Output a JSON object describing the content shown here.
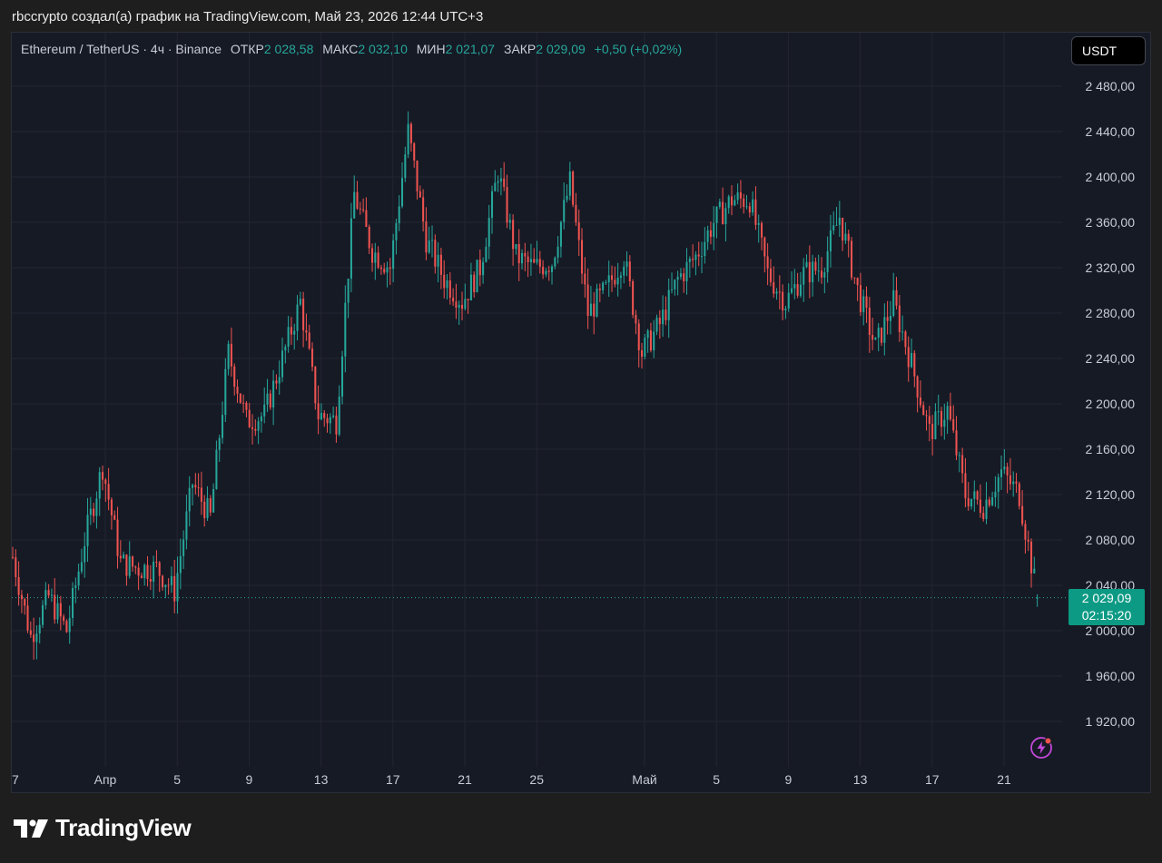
{
  "header": {
    "credit": "rbccrypto создал(а) график на TradingView.com, Май 23, 2026 12:44 UTC+3"
  },
  "legend": {
    "symbol": "Ethereum / TetherUS · 4ч · Binance",
    "open_label": "ОТКР",
    "open_value": "2 028,58",
    "high_label": "МАКС",
    "high_value": "2 032,10",
    "low_label": "МИН",
    "low_value": "2 021,07",
    "close_label": "ЗАКР",
    "close_value": "2 029,09",
    "change": "+0,50 (+0,02%)"
  },
  "currency_button": "USDT",
  "price_label": {
    "price": "2 029,09",
    "countdown": "02:15:20"
  },
  "brand": {
    "name": "TradingView"
  },
  "colors": {
    "up": "#26a69a",
    "down": "#ef5350",
    "background": "#161a25",
    "grid": "#232632"
  },
  "icons": [
    "tradingview-logo-icon",
    "lightning-alert-icon"
  ],
  "chart_data": {
    "type": "candlestick",
    "title": "Ethereum / TetherUS · 4ч · Binance",
    "timeframe": "4ч",
    "x_ticks": [
      "7",
      "Апр",
      "5",
      "9",
      "13",
      "17",
      "21",
      "25",
      "Май",
      "5",
      "9",
      "13",
      "17",
      "21"
    ],
    "y_ticks": [
      "2 480,00",
      "2 440,00",
      "2 400,00",
      "2 360,00",
      "2 320,00",
      "2 280,00",
      "2 240,00",
      "2 200,00",
      "2 160,00",
      "2 120,00",
      "2 080,00",
      "2 040,00",
      "2 000,00",
      "1 960,00",
      "1 920,00"
    ],
    "ylim": [
      1895,
      2495
    ],
    "grid": true,
    "series_close": [
      {
        "date": "2026-03-27",
        "close": 2065
      },
      {
        "date": "2026-03-28",
        "close": 1995
      },
      {
        "date": "2026-03-29",
        "close": 2030
      },
      {
        "date": "2026-03-30",
        "close": 2000
      },
      {
        "date": "2026-03-31",
        "close": 2080
      },
      {
        "date": "2026-04-01",
        "close": 2145
      },
      {
        "date": "2026-04-02",
        "close": 2060
      },
      {
        "date": "2026-04-03",
        "close": 2055
      },
      {
        "date": "2026-04-04",
        "close": 2055
      },
      {
        "date": "2026-04-05",
        "close": 2035
      },
      {
        "date": "2026-04-06",
        "close": 2130
      },
      {
        "date": "2026-04-07",
        "close": 2100
      },
      {
        "date": "2026-04-08",
        "close": 2245
      },
      {
        "date": "2026-04-09",
        "close": 2185
      },
      {
        "date": "2026-04-10",
        "close": 2190
      },
      {
        "date": "2026-04-11",
        "close": 2240
      },
      {
        "date": "2026-04-12",
        "close": 2290
      },
      {
        "date": "2026-04-13",
        "close": 2190
      },
      {
        "date": "2026-04-14",
        "close": 2185
      },
      {
        "date": "2026-04-15",
        "close": 2385
      },
      {
        "date": "2026-04-16",
        "close": 2335
      },
      {
        "date": "2026-04-17",
        "close": 2320
      },
      {
        "date": "2026-04-18",
        "close": 2440
      },
      {
        "date": "2026-04-19",
        "close": 2345
      },
      {
        "date": "2026-04-20",
        "close": 2310
      },
      {
        "date": "2026-04-21",
        "close": 2290
      },
      {
        "date": "2026-04-22",
        "close": 2320
      },
      {
        "date": "2026-04-23",
        "close": 2405
      },
      {
        "date": "2026-04-24",
        "close": 2330
      },
      {
        "date": "2026-04-25",
        "close": 2320
      },
      {
        "date": "2026-04-26",
        "close": 2325
      },
      {
        "date": "2026-04-27",
        "close": 2395
      },
      {
        "date": "2026-04-28",
        "close": 2280
      },
      {
        "date": "2026-04-29",
        "close": 2300
      },
      {
        "date": "2026-04-30",
        "close": 2330
      },
      {
        "date": "2026-05-01",
        "close": 2245
      },
      {
        "date": "2026-05-02",
        "close": 2270
      },
      {
        "date": "2026-05-03",
        "close": 2310
      },
      {
        "date": "2026-05-04",
        "close": 2330
      },
      {
        "date": "2026-05-05",
        "close": 2360
      },
      {
        "date": "2026-05-06",
        "close": 2380
      },
      {
        "date": "2026-05-07",
        "close": 2380
      },
      {
        "date": "2026-05-08",
        "close": 2315
      },
      {
        "date": "2026-05-09",
        "close": 2290
      },
      {
        "date": "2026-05-10",
        "close": 2315
      },
      {
        "date": "2026-05-11",
        "close": 2320
      },
      {
        "date": "2026-05-12",
        "close": 2365
      },
      {
        "date": "2026-05-13",
        "close": 2300
      },
      {
        "date": "2026-05-14",
        "close": 2250
      },
      {
        "date": "2026-05-15",
        "close": 2290
      },
      {
        "date": "2026-05-16",
        "close": 2235
      },
      {
        "date": "2026-05-17",
        "close": 2175
      },
      {
        "date": "2026-05-18",
        "close": 2195
      },
      {
        "date": "2026-05-19",
        "close": 2120
      },
      {
        "date": "2026-05-20",
        "close": 2110
      },
      {
        "date": "2026-05-21",
        "close": 2140
      },
      {
        "date": "2026-05-22",
        "close": 2120
      },
      {
        "date": "2026-05-23",
        "close": 2029.09
      }
    ],
    "last_candle": {
      "open": 2028.58,
      "high": 2032.1,
      "low": 2021.07,
      "close": 2029.09
    },
    "current_price": 2029.09
  }
}
